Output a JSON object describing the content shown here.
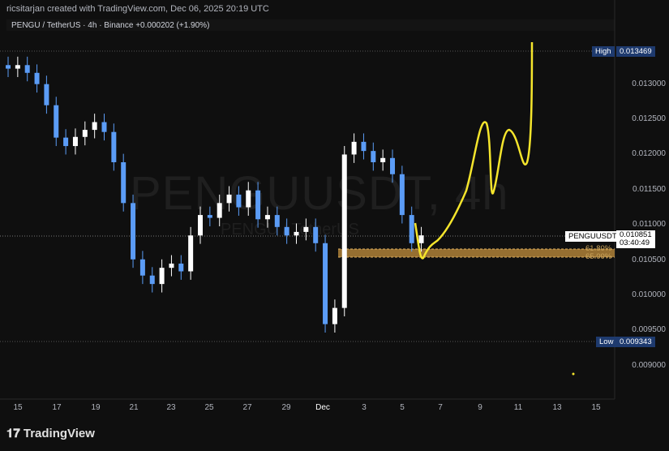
{
  "header": {
    "credit": "ricsitarjan created with TradingView.com, Dec 06, 2025 20:19 UTC",
    "symbol_legend": "PENGU / TetherUS · 4h · Binance  +0.000202 (+1.90%)"
  },
  "watermark": {
    "main": "PENGUUSDT, 4h",
    "sub": "PENGU / TetherUS"
  },
  "price_axis": {
    "ticks": [
      "0.013000",
      "0.012500",
      "0.012000",
      "0.011500",
      "0.011000",
      "0.010500",
      "0.010000",
      "0.009500",
      "0.009000"
    ],
    "high_label": "High",
    "high_value": "0.013469",
    "low_label": "Low",
    "low_value": "0.009343",
    "symbol_tag": "PENGUUSDT",
    "last_price": "0.010851",
    "countdown": "03:40:49",
    "fib_1": "61.80%",
    "fib_2": "65.00%"
  },
  "time_axis": {
    "ticks": [
      "15",
      "17",
      "19",
      "21",
      "23",
      "25",
      "27",
      "29",
      "Dec",
      "3",
      "5",
      "7",
      "9",
      "11",
      "13",
      "15"
    ]
  },
  "colors": {
    "up": "#ffffff",
    "down": "#5b9cf6",
    "projection": "#f5e52c",
    "zone": "#b8873a"
  },
  "chart_data": {
    "type": "candlestick",
    "interval": "12h approx (closes)",
    "start": "Nov 14 12:00",
    "closes": [
      0.01322,
      0.01327,
      0.01316,
      0.013,
      0.0127,
      0.01224,
      0.01212,
      0.01225,
      0.01235,
      0.01246,
      0.01232,
      0.01189,
      0.01131,
      0.01051,
      0.01028,
      0.01016,
      0.01039,
      0.01045,
      0.01034,
      0.01085,
      0.01114,
      0.0111,
      0.01131,
      0.01143,
      0.01125,
      0.01149,
      0.01108,
      0.01114,
      0.01097,
      0.01085,
      0.0109,
      0.01097,
      0.01074,
      0.00959,
      0.00982,
      0.012,
      0.01218,
      0.01205,
      0.01189,
      0.01195,
      0.01172,
      0.01114,
      0.01074,
      0.010851
    ],
    "high": 0.013469,
    "low": 0.009343,
    "ylim": [
      0.0085,
      0.0138
    ]
  }
}
